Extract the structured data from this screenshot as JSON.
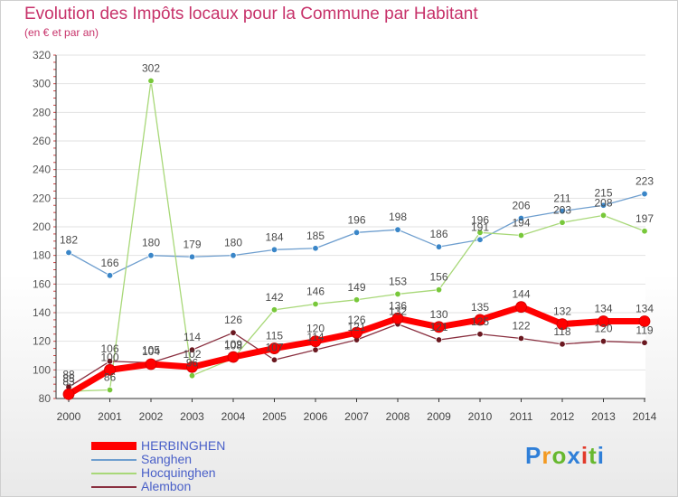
{
  "title": "Evolution des Impôts locaux pour la Commune par Habitant",
  "subtitle": "(en € et par an)",
  "logo": {
    "text": "Proxiti",
    "colors": [
      "#2f7fd8",
      "#f39a22",
      "#67b82f",
      "#2f7fd8",
      "#e23a2a",
      "#67b82f",
      "#2f7fd8"
    ]
  },
  "chart_data": {
    "type": "line",
    "title": "Evolution des Impôts locaux pour la Commune par Habitant",
    "subtitle": "(en € et par an)",
    "x": [
      2000,
      2001,
      2002,
      2003,
      2004,
      2005,
      2006,
      2007,
      2008,
      2009,
      2010,
      2011,
      2012,
      2013,
      2014
    ],
    "ylim": [
      80,
      320
    ],
    "yticks": [
      80,
      100,
      120,
      140,
      160,
      180,
      200,
      220,
      240,
      260,
      280,
      300,
      320
    ],
    "series": [
      {
        "name": "HERBINGHEN",
        "color": "#ff0000",
        "values": [
          83,
          100,
          104,
          102,
          109,
          115,
          120,
          126,
          136,
          130,
          135,
          144,
          132,
          134,
          134
        ]
      },
      {
        "name": "Sanghen",
        "color": "#6f9fcf",
        "marker": "#3a86c8",
        "values": [
          182,
          166,
          180,
          179,
          180,
          184,
          185,
          196,
          198,
          186,
          191,
          206,
          211,
          215,
          223
        ]
      },
      {
        "name": "Hocquinghen",
        "color": "#a8d878",
        "marker": "#78c83a",
        "values": [
          85,
          86,
          302,
          96,
          108,
          142,
          146,
          149,
          153,
          156,
          196,
          194,
          203,
          208,
          197
        ]
      },
      {
        "name": "Alembon",
        "color": "#8a3040",
        "marker": "#6a1820",
        "values": [
          88,
          106,
          105,
          114,
          126,
          107,
          114,
          121,
          132,
          121,
          125,
          122,
          118,
          120,
          119
        ]
      }
    ]
  }
}
